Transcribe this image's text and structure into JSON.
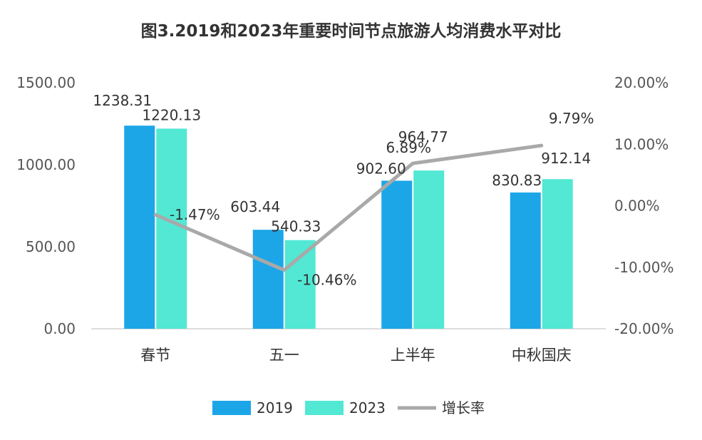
{
  "chart_data": {
    "type": "bar",
    "title": "图3.2019和2023年重要时间节点旅游人均消费水平对比",
    "categories": [
      "春节",
      "五一",
      "上半年",
      "中秋国庆"
    ],
    "series": [
      {
        "name": "2019",
        "kind": "bar",
        "axis": "left",
        "color": "#1ca6e8",
        "values": [
          1238.31,
          603.44,
          902.6,
          830.83
        ],
        "labels": [
          "1238.31",
          "603.44",
          "902.60",
          "830.83"
        ]
      },
      {
        "name": "2023",
        "kind": "bar",
        "axis": "left",
        "color": "#52e8d4",
        "values": [
          1220.13,
          540.33,
          964.77,
          912.14
        ],
        "labels": [
          "1220.13",
          "540.33",
          "964.77",
          "912.14"
        ]
      },
      {
        "name": "增长率",
        "kind": "line",
        "axis": "right",
        "color": "#a9a9a9",
        "values": [
          -1.47,
          -10.46,
          6.89,
          9.79
        ],
        "labels": [
          "-1.47%",
          "-10.46%",
          "6.89%",
          "9.79%"
        ]
      }
    ],
    "y_left": {
      "min": 0,
      "max": 1500,
      "ticks": [
        "1500.00",
        "1000.00",
        "500.00",
        "0.00"
      ],
      "tick_values": [
        1500,
        1000,
        500,
        0
      ]
    },
    "y_right": {
      "min": -20,
      "max": 20,
      "ticks": [
        "20.00%",
        "10.00%",
        "0.00%",
        "-10.00%",
        "-20.00%"
      ],
      "tick_values": [
        20,
        10,
        0,
        -10,
        -20
      ]
    },
    "legend": {
      "placement": "bottom"
    },
    "grid": false
  }
}
